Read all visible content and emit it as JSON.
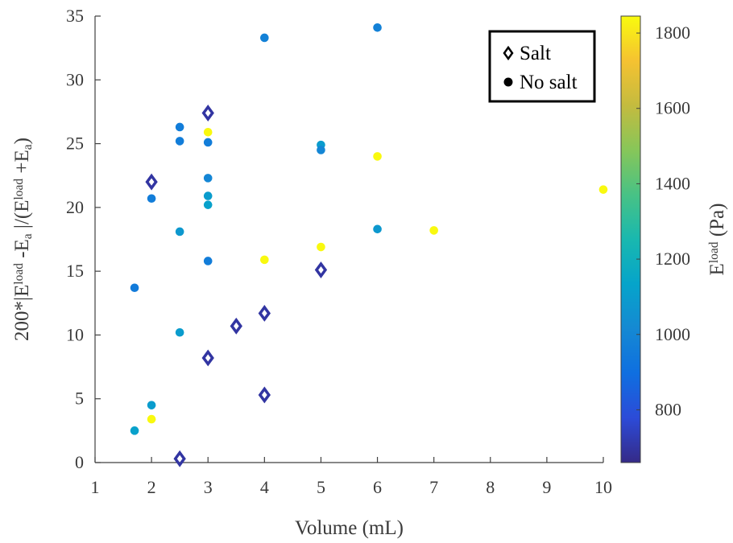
{
  "chart_data": {
    "type": "scatter",
    "xlabel": "Volume (mL)",
    "ylabel": {
      "parts": [
        {
          "t": "200*|E",
          "s": "n"
        },
        {
          "t": "load",
          "s": "sup"
        },
        {
          "t": " -E",
          "s": "n"
        },
        {
          "t": "a",
          "s": "sub"
        },
        {
          "t": " |/(E",
          "s": "n"
        },
        {
          "t": "load",
          "s": "sup"
        },
        {
          "t": " +E",
          "s": "n"
        },
        {
          "t": "a",
          "s": "sub"
        },
        {
          "t": ")",
          "s": "n"
        }
      ]
    },
    "xlim": [
      1,
      10
    ],
    "ylim": [
      0,
      35
    ],
    "xticks": [
      "1",
      "2",
      "3",
      "4",
      "5",
      "6",
      "7",
      "8",
      "9",
      "10"
    ],
    "yticks": [
      "0",
      "5",
      "10",
      "15",
      "20",
      "25",
      "30",
      "35"
    ],
    "colorbar": {
      "label": {
        "parts": [
          {
            "t": "E",
            "s": "n"
          },
          {
            "t": "load",
            "s": "sup"
          },
          {
            "t": " (Pa)",
            "s": "n"
          }
        ]
      },
      "range": [
        660,
        1845
      ],
      "ticks": [
        "800",
        "1000",
        "1200",
        "1400",
        "1600",
        "1800"
      ],
      "colormap": "parula"
    },
    "legend": {
      "position": "top-right",
      "entries": [
        {
          "label": "Salt",
          "marker": "diamond"
        },
        {
          "label": "No salt",
          "marker": "circle"
        }
      ]
    },
    "series": [
      {
        "name": "Salt",
        "marker": "diamond",
        "points": [
          {
            "x": 2,
            "y": 22.0,
            "c": 700
          },
          {
            "x": 2.5,
            "y": 0.3,
            "c": 700
          },
          {
            "x": 3,
            "y": 27.4,
            "c": 700
          },
          {
            "x": 3,
            "y": 8.2,
            "c": 700
          },
          {
            "x": 3.5,
            "y": 10.7,
            "c": 700
          },
          {
            "x": 4,
            "y": 11.7,
            "c": 700
          },
          {
            "x": 4,
            "y": 5.3,
            "c": 700
          },
          {
            "x": 5,
            "y": 15.1,
            "c": 700
          }
        ]
      },
      {
        "name": "No salt",
        "marker": "circle",
        "points": [
          {
            "x": 1.7,
            "y": 13.7,
            "c": 950
          },
          {
            "x": 1.7,
            "y": 2.5,
            "c": 1120
          },
          {
            "x": 2,
            "y": 20.7,
            "c": 960
          },
          {
            "x": 2,
            "y": 4.5,
            "c": 1100
          },
          {
            "x": 2,
            "y": 3.4,
            "c": 1840
          },
          {
            "x": 2.5,
            "y": 26.3,
            "c": 960
          },
          {
            "x": 2.5,
            "y": 25.2,
            "c": 960
          },
          {
            "x": 2.5,
            "y": 18.1,
            "c": 1080
          },
          {
            "x": 2.5,
            "y": 10.2,
            "c": 1100
          },
          {
            "x": 3,
            "y": 25.9,
            "c": 1840
          },
          {
            "x": 3,
            "y": 25.1,
            "c": 960
          },
          {
            "x": 3,
            "y": 22.3,
            "c": 1000
          },
          {
            "x": 3,
            "y": 20.9,
            "c": 1100
          },
          {
            "x": 3,
            "y": 20.2,
            "c": 1120
          },
          {
            "x": 3,
            "y": 15.8,
            "c": 960
          },
          {
            "x": 4,
            "y": 33.3,
            "c": 980
          },
          {
            "x": 4,
            "y": 15.9,
            "c": 1840
          },
          {
            "x": 5,
            "y": 24.9,
            "c": 1100
          },
          {
            "x": 5,
            "y": 24.5,
            "c": 1000
          },
          {
            "x": 5,
            "y": 16.9,
            "c": 1840
          },
          {
            "x": 6,
            "y": 34.1,
            "c": 980
          },
          {
            "x": 6,
            "y": 24.0,
            "c": 1840
          },
          {
            "x": 6,
            "y": 18.3,
            "c": 1080
          },
          {
            "x": 7,
            "y": 18.2,
            "c": 1840
          },
          {
            "x": 10,
            "y": 21.4,
            "c": 1840
          }
        ]
      }
    ]
  }
}
